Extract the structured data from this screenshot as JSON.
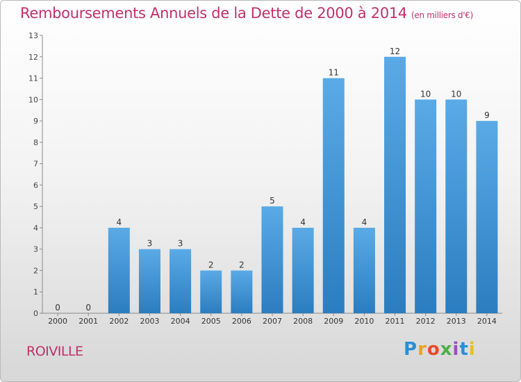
{
  "title": "Remboursements Annuels de la Dette de 2000 à 2014",
  "subtitle": "(en milliers d'€)",
  "place_name": "ROIVILLE",
  "logo": {
    "text": "Proxiti",
    "colors": [
      "#2a8fd6",
      "#f0a020",
      "#e84a2a",
      "#4cb04a",
      "#9a4fc0",
      "#2a8fd6",
      "#e8c020"
    ]
  },
  "colors": {
    "title": "#c0306b",
    "bar_light": "#5aaae6",
    "bar_dark": "#2a7dc0"
  },
  "chart_data": {
    "type": "bar",
    "title": "Remboursements Annuels de la Dette de 2000 à 2014",
    "subtitle": "(en milliers d'€)",
    "xlabel": "",
    "ylabel": "",
    "categories": [
      "2000",
      "2001",
      "2002",
      "2003",
      "2004",
      "2005",
      "2006",
      "2007",
      "2008",
      "2009",
      "2010",
      "2011",
      "2012",
      "2013",
      "2014"
    ],
    "values": [
      0,
      0,
      4,
      3,
      3,
      2,
      2,
      5,
      4,
      11,
      4,
      12,
      10,
      10,
      9
    ],
    "ylim": [
      0,
      13
    ],
    "yticks": [
      0,
      1,
      2,
      3,
      4,
      5,
      6,
      7,
      8,
      9,
      10,
      11,
      12,
      13
    ],
    "grid": false,
    "legend": "none"
  }
}
